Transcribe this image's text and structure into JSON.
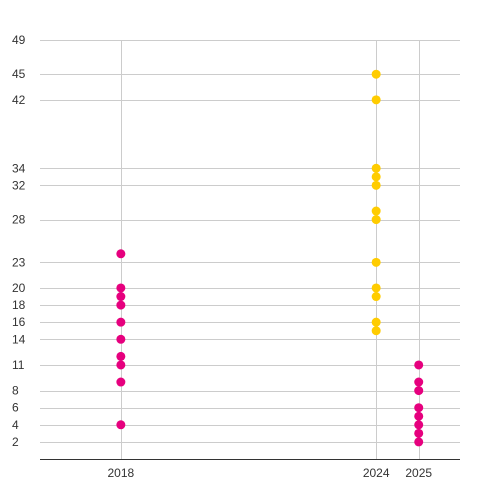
{
  "chart_data": {
    "type": "scatter",
    "x_ticks": [
      2018,
      2024,
      2025
    ],
    "y_ticks": [
      2,
      4,
      6,
      8,
      11,
      14,
      16,
      18,
      20,
      23,
      28,
      32,
      34,
      42,
      45,
      49
    ],
    "xlim": [
      2016.1,
      2025.97
    ],
    "ylim": [
      0,
      49
    ],
    "grid": true,
    "series": [
      {
        "color": "#e6007e",
        "x": 2018,
        "values": [
          4,
          9,
          11,
          12,
          14,
          16,
          18,
          19,
          20,
          24
        ]
      },
      {
        "color": "#ffcc00",
        "x": 2024,
        "values": [
          15,
          16,
          19,
          20,
          23,
          28,
          29,
          32,
          33,
          34,
          42,
          45
        ]
      },
      {
        "color": "#e6007e",
        "x": 2025,
        "values": [
          2,
          3,
          4,
          5,
          6,
          8,
          9,
          11
        ]
      }
    ]
  }
}
